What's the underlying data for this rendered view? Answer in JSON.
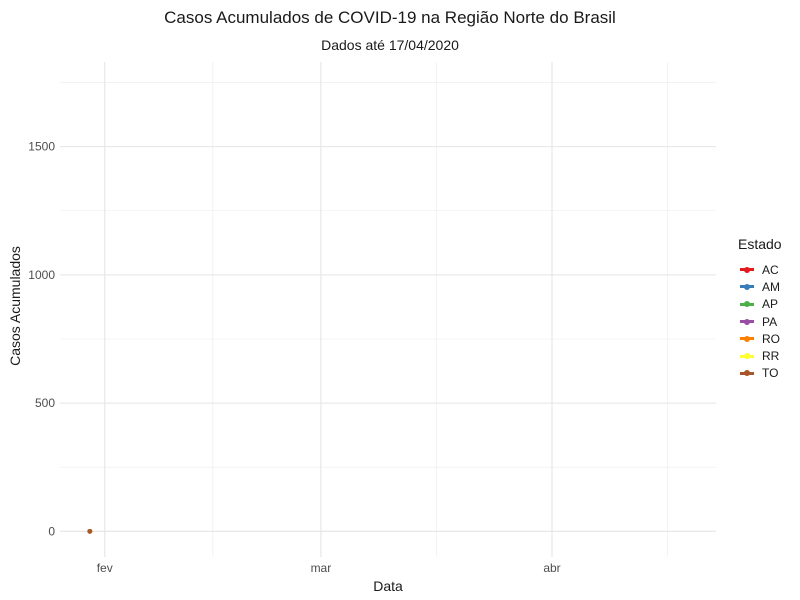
{
  "chart_data": {
    "type": "line",
    "title": "Casos Acumulados de COVID-19 na Região Norte do Brasil",
    "subtitle": "Dados até 17/04/2020",
    "xlabel": "Data",
    "ylabel": "Casos Acumulados",
    "x_ticks": [
      {
        "label": "fev",
        "date": "2020-02-01"
      },
      {
        "label": "mar",
        "date": "2020-03-01"
      },
      {
        "label": "abr",
        "date": "2020-04-01"
      }
    ],
    "y_ticks": [
      0,
      500,
      1000,
      1500
    ],
    "xlim": [
      "2020-01-26",
      "2020-04-23"
    ],
    "ylim": [
      -100,
      1830
    ],
    "grid": true,
    "legend_title": "Estado",
    "legend_position": "right",
    "series": [
      {
        "name": "AC",
        "color": "#e41a1c",
        "points": [
          {
            "x": "2020-01-30",
            "y": 0
          }
        ]
      },
      {
        "name": "AM",
        "color": "#377eb8",
        "points": [
          {
            "x": "2020-01-30",
            "y": 0
          }
        ]
      },
      {
        "name": "AP",
        "color": "#4daf4a",
        "points": [
          {
            "x": "2020-01-30",
            "y": 0
          }
        ]
      },
      {
        "name": "PA",
        "color": "#984ea3",
        "points": [
          {
            "x": "2020-01-30",
            "y": 0
          }
        ]
      },
      {
        "name": "RO",
        "color": "#ff7f00",
        "points": [
          {
            "x": "2020-01-30",
            "y": 0
          }
        ]
      },
      {
        "name": "RR",
        "color": "#ffff33",
        "points": [
          {
            "x": "2020-01-30",
            "y": 0
          }
        ]
      },
      {
        "name": "TO",
        "color": "#a65628",
        "points": [
          {
            "x": "2020-01-30",
            "y": 0
          }
        ]
      }
    ]
  }
}
